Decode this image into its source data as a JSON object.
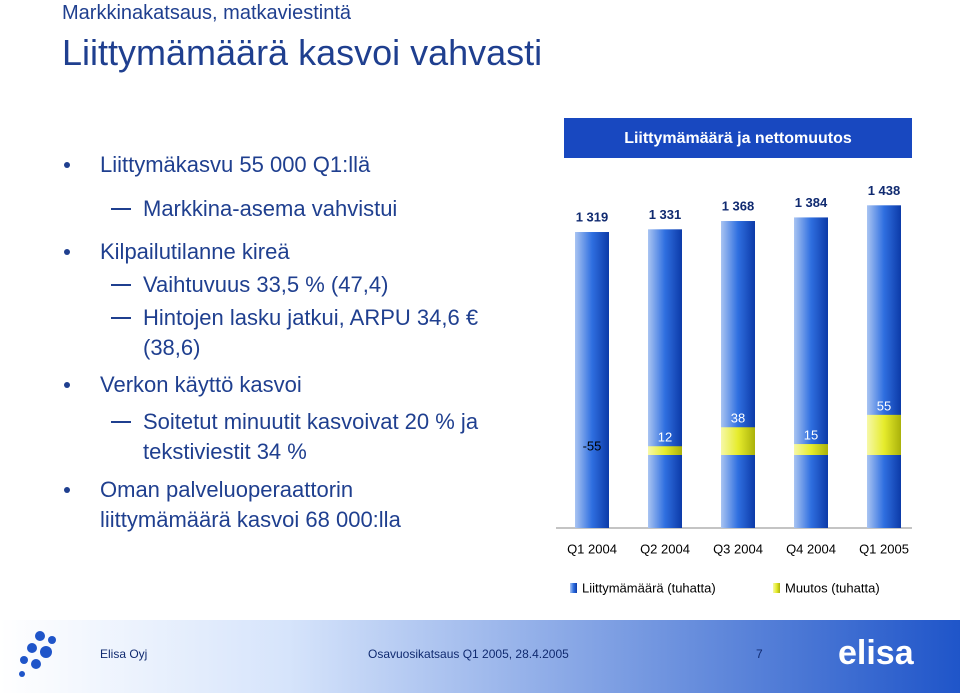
{
  "header": {
    "subtitle": "Markkinakatsaus, matkaviestintä",
    "title": "Liittymämäärä kasvoi vahvasti"
  },
  "bullets": [
    {
      "text": "Liittymäkasvu 55 000 Q1:llä",
      "sub": [
        "Markkina-asema vahvistui"
      ]
    },
    {
      "text": "Kilpailutilanne kireä",
      "sub": [
        "Vaihtuvuus 33,5 % (47,4)",
        "Hintojen lasku jatkui, ARPU 34,6 € (38,6)"
      ]
    },
    {
      "text": "Verkon käyttö kasvoi",
      "sub": [
        "Soitetut minuutit kasvoivat 20 % ja tekstiviestit 34 %"
      ]
    },
    {
      "text": "Oman palveluoperaattorin liittymämäärä kasvoi 68 000:lla",
      "sub": []
    }
  ],
  "chart_data": {
    "type": "bar",
    "title": "Liittymämäärä ja nettomuutos",
    "categories": [
      "Q1 2004",
      "Q2 2004",
      "Q3 2004",
      "Q4 2004",
      "Q1 2005"
    ],
    "series": [
      {
        "name": "Liittymämäärä (tuhatta)",
        "color": "#2f6fe0",
        "values": [
          1319,
          1331,
          1368,
          1384,
          1438
        ],
        "value_labels": [
          "1 319",
          "1 331",
          "1 368",
          "1 384",
          "1 438"
        ]
      },
      {
        "name": "Muutos (tuhatta)",
        "color": "#e6ec2c",
        "values": [
          -55,
          12,
          38,
          15,
          55
        ]
      }
    ]
  },
  "footer": {
    "company": "Elisa Oyj",
    "text": "Osavuosikatsaus Q1 2005, 28.4.2005",
    "page": "7",
    "logo": "elisa"
  }
}
